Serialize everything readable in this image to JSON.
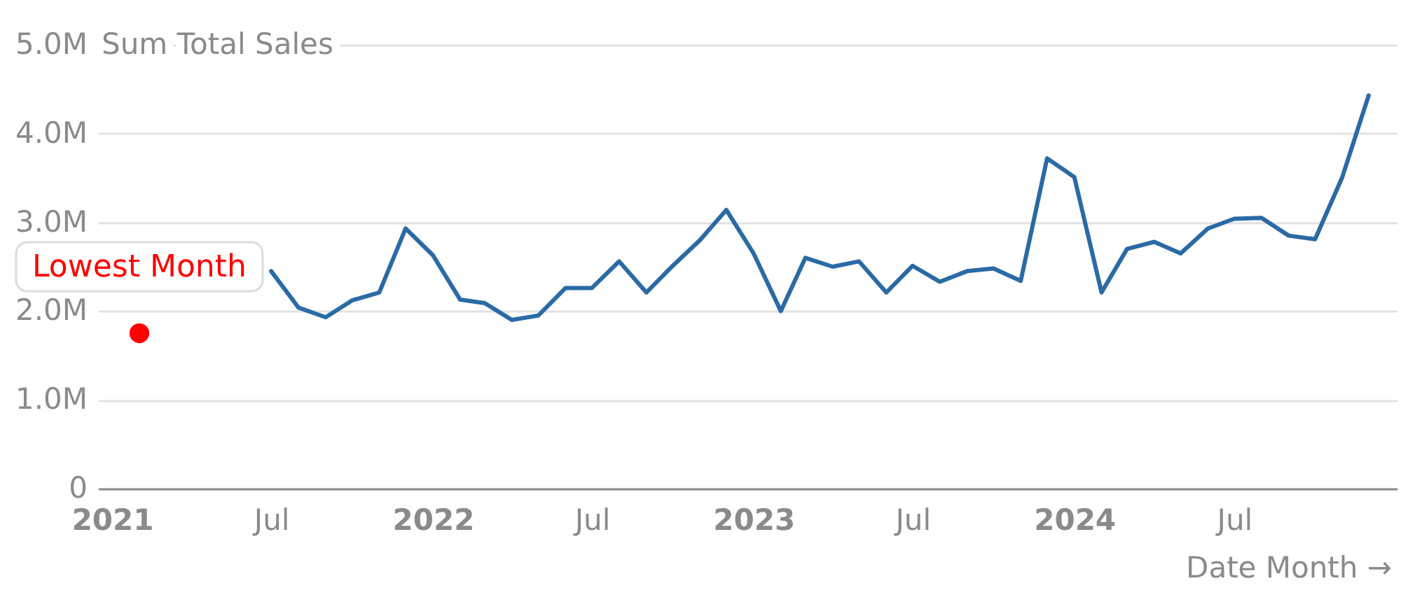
{
  "chart_data": {
    "type": "line",
    "ylabel": "Sum Total Sales",
    "xlabel": "Date Month →",
    "series": [
      {
        "color": "#2a6aa5",
        "x": [
          "2021-07",
          "2021-08",
          "2021-09",
          "2021-10",
          "2021-11",
          "2021-12",
          "2022-01",
          "2022-02",
          "2022-03",
          "2022-04",
          "2022-05",
          "2022-06",
          "2022-07",
          "2022-08",
          "2022-09",
          "2022-10",
          "2022-11",
          "2022-12",
          "2023-01",
          "2023-02",
          "2023-03",
          "2023-04",
          "2023-05",
          "2023-06",
          "2023-07",
          "2023-08",
          "2023-09",
          "2023-10",
          "2023-11",
          "2023-12",
          "2024-01",
          "2024-02",
          "2024-03",
          "2024-04",
          "2024-05",
          "2024-06",
          "2024-07",
          "2024-08",
          "2024-09",
          "2024-10",
          "2024-11",
          "2024-12"
        ],
        "values": [
          2.45,
          2.04,
          1.93,
          2.12,
          2.21,
          2.93,
          2.63,
          2.13,
          2.09,
          1.9,
          1.95,
          2.26,
          2.26,
          2.56,
          2.21,
          2.51,
          2.8,
          3.14,
          2.65,
          2.0,
          2.6,
          2.5,
          2.56,
          2.21,
          2.51,
          2.33,
          2.45,
          2.48,
          2.34,
          3.72,
          3.51,
          2.21,
          2.7,
          2.78,
          2.65,
          2.93,
          3.04,
          3.05,
          2.85,
          2.81,
          3.51,
          4.43
        ]
      },
      {
        "type": "scatter",
        "color": "#ff0000",
        "x": [
          "2021-02"
        ],
        "values": [
          1.75
        ]
      }
    ],
    "xlim": [
      "2020-12-16",
      "2025-01-02"
    ],
    "xticks": [
      {
        "value": "2021-01",
        "label": "2021"
      },
      {
        "value": "2021-07",
        "label": "Jul"
      },
      {
        "value": "2022-01",
        "label": "2022"
      },
      {
        "value": "2022-07",
        "label": "Jul"
      },
      {
        "value": "2023-01",
        "label": "2023"
      },
      {
        "value": "2023-07",
        "label": "Jul"
      },
      {
        "value": "2024-01",
        "label": "2024"
      },
      {
        "value": "2024-07",
        "label": "Jul"
      }
    ],
    "ylim": [
      0,
      5
    ],
    "yticks": [
      0,
      {
        "value": 1,
        "label": "1.0M"
      },
      {
        "value": 2,
        "label": "2.0M"
      },
      {
        "value": 3,
        "label": "3.0M"
      },
      {
        "value": 4,
        "label": "4.0M"
      },
      {
        "value": 5,
        "label": "5.0M"
      }
    ],
    "grid": "y",
    "annotations": [
      {
        "text": "Lowest Month",
        "x": "2021-02",
        "y": 1.75
      }
    ]
  }
}
